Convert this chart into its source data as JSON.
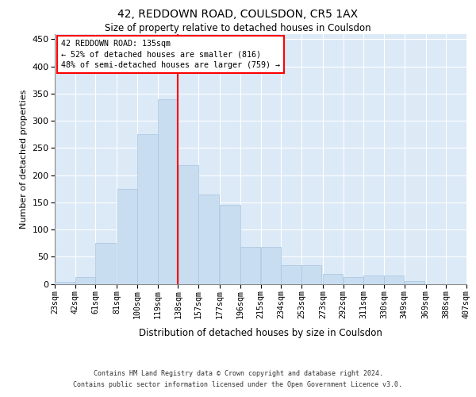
{
  "title": "42, REDDOWN ROAD, COULSDON, CR5 1AX",
  "subtitle": "Size of property relative to detached houses in Coulsdon",
  "xlabel": "Distribution of detached houses by size in Coulsdon",
  "ylabel": "Number of detached properties",
  "bar_color": "#c9ddf0",
  "bar_edge_color": "#a8c4e0",
  "bg_color": "#dce9f7",
  "grid_color": "#ffffff",
  "vline_color": "red",
  "vline_x": 138,
  "annotation_line1": "42 REDDOWN ROAD: 135sqm",
  "annotation_line2": "← 52% of detached houses are smaller (816)",
  "annotation_line3": "48% of semi-detached houses are larger (759) →",
  "footer_line1": "Contains HM Land Registry data © Crown copyright and database right 2024.",
  "footer_line2": "Contains public sector information licensed under the Open Government Licence v3.0.",
  "bin_labels": [
    "23sqm",
    "42sqm",
    "61sqm",
    "81sqm",
    "100sqm",
    "119sqm",
    "138sqm",
    "157sqm",
    "177sqm",
    "196sqm",
    "215sqm",
    "234sqm",
    "253sqm",
    "273sqm",
    "292sqm",
    "311sqm",
    "330sqm",
    "349sqm",
    "369sqm",
    "388sqm",
    "407sqm"
  ],
  "bin_edges": [
    23,
    42,
    61,
    81,
    100,
    119,
    138,
    157,
    177,
    196,
    215,
    234,
    253,
    273,
    292,
    311,
    330,
    349,
    369,
    388,
    407
  ],
  "bar_heights": [
    3,
    13,
    75,
    175,
    275,
    340,
    218,
    165,
    145,
    68,
    68,
    35,
    35,
    18,
    13,
    15,
    15,
    5,
    0,
    0,
    3
  ],
  "ylim": [
    0,
    460
  ],
  "yticks": [
    0,
    50,
    100,
    150,
    200,
    250,
    300,
    350,
    400,
    450
  ]
}
